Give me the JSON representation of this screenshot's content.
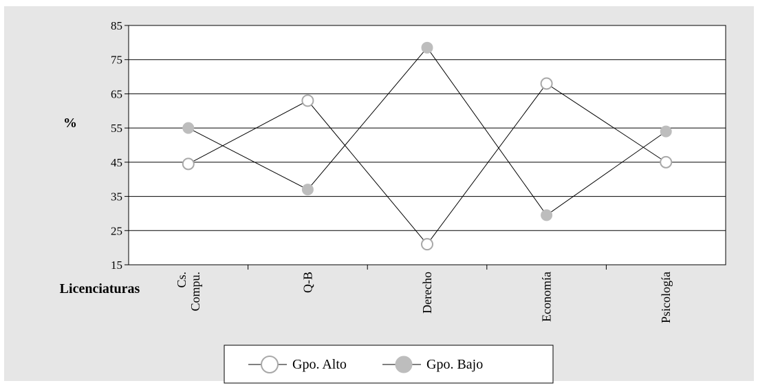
{
  "chart_data": {
    "type": "line",
    "ylabel": "%",
    "xlabel": "Licenciaturas",
    "ylim": [
      15,
      85
    ],
    "yticks": [
      15,
      25,
      35,
      45,
      55,
      65,
      75,
      85
    ],
    "categories": [
      [
        "Cs.",
        "Compu."
      ],
      [
        "Q-B"
      ],
      [
        "Derecho"
      ],
      [
        "Economía"
      ],
      [
        "Psicología"
      ]
    ],
    "series": [
      {
        "name": "Gpo. Alto",
        "values": [
          44.5,
          63,
          21,
          68,
          45
        ],
        "marker": "hollow",
        "color": "#ffffff"
      },
      {
        "name": "Gpo. Bajo",
        "values": [
          55,
          37,
          78.5,
          29.5,
          54
        ],
        "marker": "filled",
        "color": "#bdbdbd"
      }
    ],
    "grid": true,
    "legend_position": "bottom"
  }
}
